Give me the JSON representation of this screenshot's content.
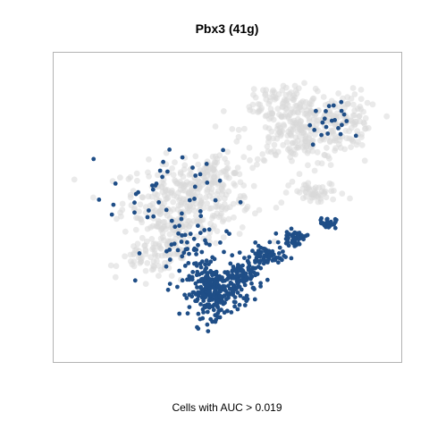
{
  "chart_data": {
    "type": "scatter",
    "title": "Pbx3 (41g)",
    "xlabel": "Cells with AUC > 0.019",
    "ylabel": "",
    "axes_visible": false,
    "grid": false,
    "legend": "none",
    "series": [
      {
        "role": "background",
        "description": "cells with AUC at or below threshold",
        "color": "#d9d9d9",
        "opacity": 0.55,
        "clusters": [
          {
            "center": [
              0.38,
              0.52
            ],
            "spread": [
              0.16,
              0.11
            ],
            "count": 320
          },
          {
            "center": [
              0.33,
              0.38
            ],
            "spread": [
              0.06,
              0.12
            ],
            "count": 90
          },
          {
            "center": [
              0.25,
              0.33
            ],
            "spread": [
              0.06,
              0.04
            ],
            "count": 40
          },
          {
            "center": [
              0.46,
              0.62
            ],
            "spread": [
              0.05,
              0.04
            ],
            "count": 60
          },
          {
            "center": [
              0.71,
              0.76
            ],
            "spread": [
              0.14,
              0.1
            ],
            "count": 260
          },
          {
            "center": [
              0.84,
              0.8
            ],
            "spread": [
              0.07,
              0.08
            ],
            "count": 90
          },
          {
            "center": [
              0.77,
              0.55
            ],
            "spread": [
              0.07,
              0.03
            ],
            "count": 50
          },
          {
            "center": [
              0.66,
              0.87
            ],
            "spread": [
              0.07,
              0.04
            ],
            "count": 50
          }
        ]
      },
      {
        "role": "highlighted",
        "description": "cells with AUC > 0.019",
        "color": "#1f4e87",
        "opacity": 1,
        "clusters": [
          {
            "center": [
              0.46,
              0.22
            ],
            "spread": [
              0.06,
              0.07
            ],
            "count": 260
          },
          {
            "center": [
              0.55,
              0.27
            ],
            "spread": [
              0.05,
              0.05
            ],
            "count": 100
          },
          {
            "center": [
              0.62,
              0.34
            ],
            "spread": [
              0.04,
              0.03
            ],
            "count": 60
          },
          {
            "center": [
              0.7,
              0.4
            ],
            "spread": [
              0.03,
              0.02
            ],
            "count": 45
          },
          {
            "center": [
              0.8,
              0.45
            ],
            "spread": [
              0.02,
              0.015
            ],
            "count": 35
          },
          {
            "center": [
              0.38,
              0.35
            ],
            "spread": [
              0.1,
              0.1
            ],
            "count": 60
          },
          {
            "center": [
              0.8,
              0.78
            ],
            "spread": [
              0.05,
              0.06
            ],
            "count": 22
          },
          {
            "center": [
              0.32,
              0.55
            ],
            "spread": [
              0.14,
              0.12
            ],
            "count": 40
          }
        ]
      }
    ],
    "xlim": [
      0,
      1
    ],
    "ylim": [
      0,
      1
    ]
  }
}
